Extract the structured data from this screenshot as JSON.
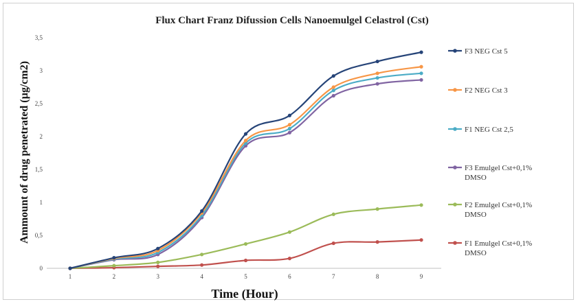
{
  "chart_data": {
    "type": "line",
    "title": "Flux Chart Franz Difussion Cells Nanoemulgel Celastrol (Cst)",
    "xlabel": "Time (Hour)",
    "ylabel": "Ammount of drug penetrated (µg/cm2)",
    "x": [
      1,
      2,
      3,
      4,
      5,
      6,
      7,
      8,
      9
    ],
    "x_tick_labels": [
      "1",
      "2",
      "3",
      "4",
      "5",
      "6",
      "7",
      "8",
      "9"
    ],
    "ylim": [
      0,
      3.5
    ],
    "y_tick_values": [
      0,
      0.5,
      1,
      1.5,
      2,
      2.5,
      3,
      3.5
    ],
    "y_tick_labels": [
      "0",
      "0,5",
      "1",
      "1,5",
      "2",
      "2,5",
      "3",
      "3,5"
    ],
    "grid": false,
    "legend_position": "right",
    "series": [
      {
        "name": "F3 NEG Cst 5",
        "color": "#264478",
        "values": [
          0,
          0.16,
          0.3,
          0.87,
          2.04,
          2.32,
          2.92,
          3.14,
          3.28
        ]
      },
      {
        "name": "F2 NEG Cst 3",
        "color": "#f79646",
        "values": [
          0,
          0.15,
          0.27,
          0.84,
          1.94,
          2.18,
          2.75,
          2.96,
          3.06
        ]
      },
      {
        "name": "F1 NEG Cst 2,5",
        "color": "#4bacc6",
        "values": [
          0,
          0.14,
          0.24,
          0.8,
          1.9,
          2.12,
          2.7,
          2.89,
          2.96
        ]
      },
      {
        "name": "F3 Emulgel Cst+0,1% DMSO",
        "color": "#8064a2",
        "values": [
          0,
          0.13,
          0.21,
          0.77,
          1.86,
          2.06,
          2.62,
          2.8,
          2.86
        ]
      },
      {
        "name": "F2 Emulgel Cst+0,1% DMSO",
        "color": "#9bbb59",
        "values": [
          0,
          0.04,
          0.09,
          0.21,
          0.37,
          0.55,
          0.82,
          0.9,
          0.96
        ]
      },
      {
        "name": "F1 Emulgel Cst+0,1% DMSO",
        "color": "#c0504d",
        "values": [
          0,
          0.01,
          0.03,
          0.05,
          0.12,
          0.15,
          0.38,
          0.4,
          0.43
        ]
      }
    ]
  }
}
